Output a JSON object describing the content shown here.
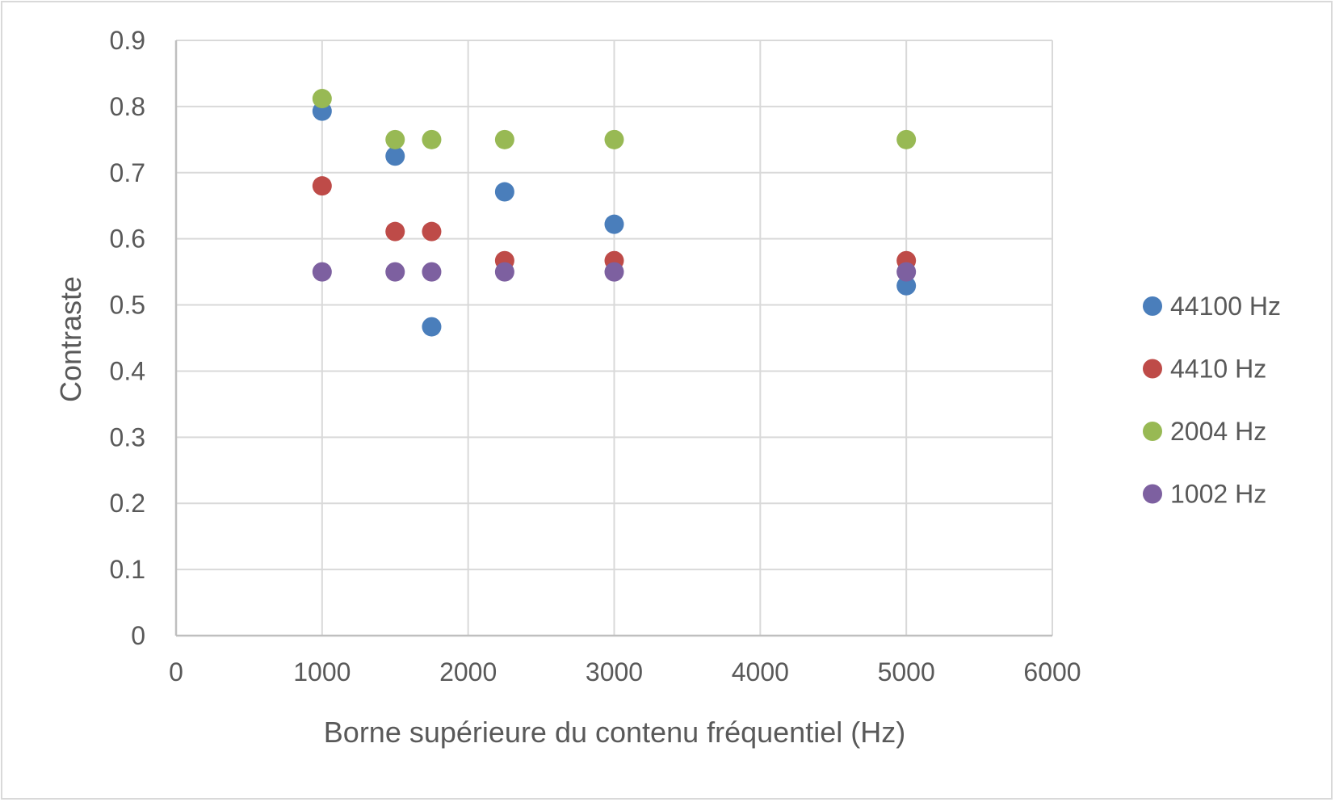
{
  "chart_data": {
    "type": "scatter",
    "title": "",
    "xlabel": "Borne supérieure du contenu fréquentiel (Hz)",
    "ylabel": "Contraste",
    "xlim": [
      0,
      6000
    ],
    "ylim": [
      0,
      0.9
    ],
    "xticks": [
      "0",
      "1000",
      "2000",
      "3000",
      "4000",
      "5000",
      "6000"
    ],
    "yticks": [
      "0",
      "0.1",
      "0.2",
      "0.3",
      "0.4",
      "0.5",
      "0.6",
      "0.7",
      "0.8",
      "0.9"
    ],
    "grid": true,
    "legend_position": "right",
    "series": [
      {
        "name": "44100 Hz",
        "color": "#4a7ebb",
        "points": [
          [
            1000,
            0.793
          ],
          [
            1500,
            0.725
          ],
          [
            1750,
            0.467
          ],
          [
            2250,
            0.671
          ],
          [
            3000,
            0.622
          ],
          [
            5000,
            0.529
          ]
        ]
      },
      {
        "name": "4410 Hz",
        "color": "#be4b48",
        "points": [
          [
            1000,
            0.68
          ],
          [
            1500,
            0.611
          ],
          [
            1750,
            0.611
          ],
          [
            2250,
            0.567
          ],
          [
            3000,
            0.567
          ],
          [
            5000,
            0.567
          ]
        ]
      },
      {
        "name": "2004 Hz",
        "color": "#98b954",
        "points": [
          [
            1000,
            0.812
          ],
          [
            1500,
            0.75
          ],
          [
            1750,
            0.75
          ],
          [
            2250,
            0.75
          ],
          [
            3000,
            0.75
          ],
          [
            5000,
            0.75
          ]
        ]
      },
      {
        "name": "1002 Hz",
        "color": "#7d60a0",
        "points": [
          [
            1000,
            0.55
          ],
          [
            1500,
            0.55
          ],
          [
            1750,
            0.55
          ],
          [
            2250,
            0.55
          ],
          [
            3000,
            0.55
          ],
          [
            5000,
            0.55
          ]
        ]
      }
    ]
  }
}
